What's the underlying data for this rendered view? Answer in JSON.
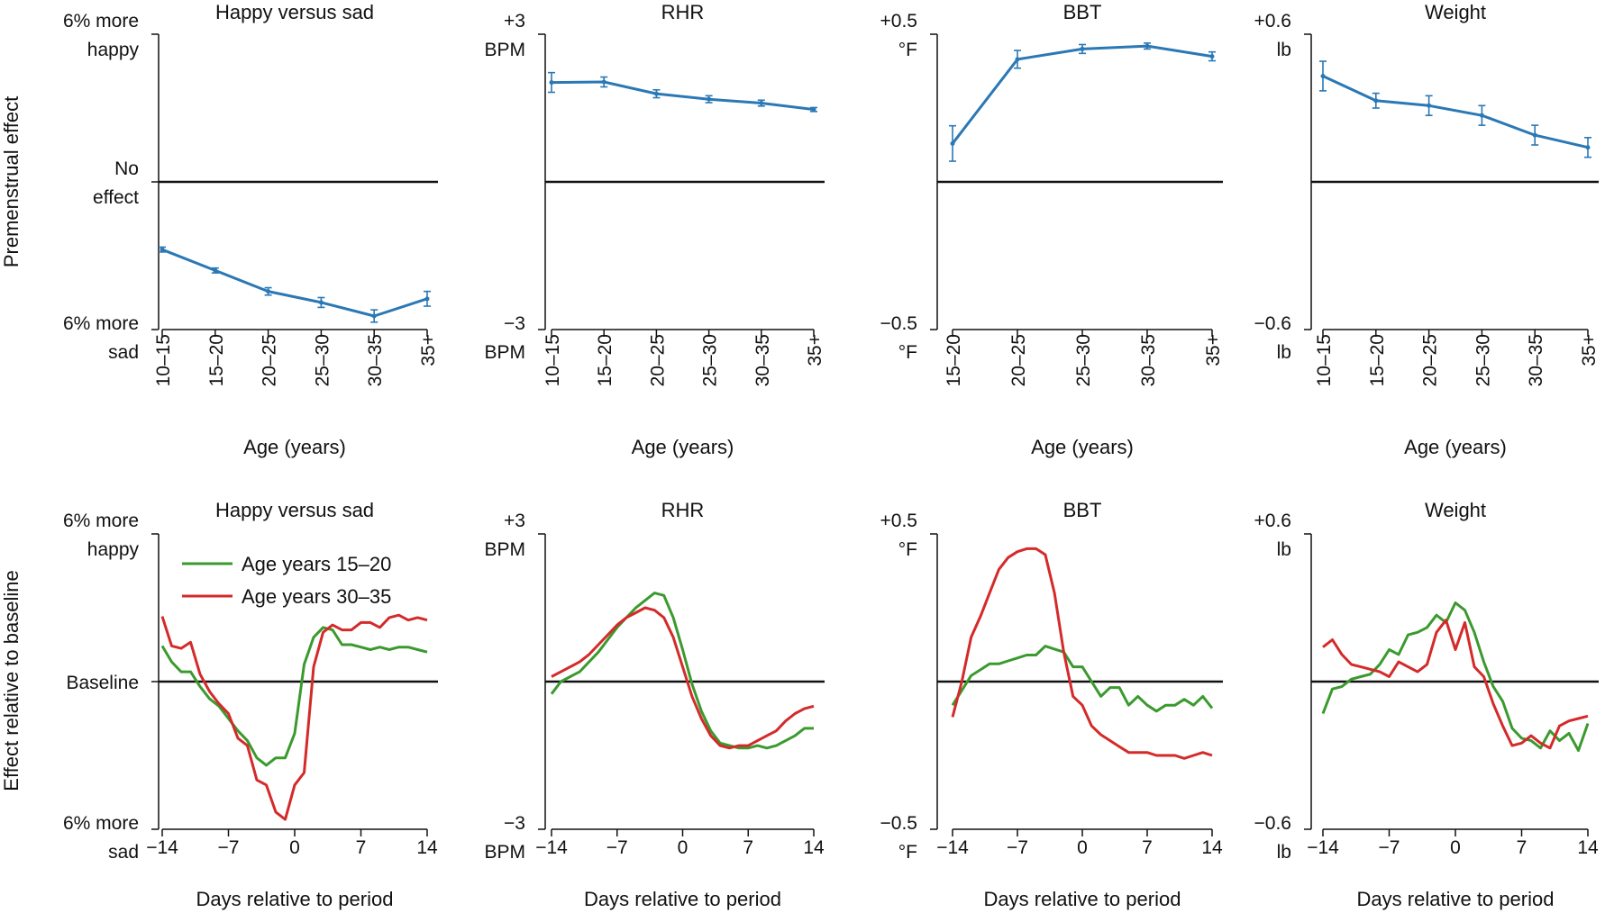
{
  "figure": {
    "row_ylabels": [
      "Premenstrual effect",
      "Effect relative to baseline"
    ],
    "colors": {
      "age_effect": "#2a78b5",
      "age_15_20": "#3a9a2e",
      "age_30_35": "#d42a2a",
      "axis": "#111111"
    }
  },
  "chart_data": [
    {
      "type": "line",
      "row": 0,
      "col": 0,
      "title": "Happy versus sad",
      "xlabel": "Age (years)",
      "categories": [
        "10–15",
        "15–20",
        "20–25",
        "25–30",
        "30–35",
        "35+"
      ],
      "ylim": [
        -6,
        6
      ],
      "ytick_values": [
        6,
        0,
        -6
      ],
      "ytick_labels": [
        [
          "6% more",
          "happy"
        ],
        [
          "No",
          "effect"
        ],
        [
          "6% more",
          "sad"
        ]
      ],
      "series": [
        {
          "values": [
            -2.75,
            -3.6,
            -4.45,
            -4.9,
            -5.45,
            -4.75
          ],
          "err": [
            0.1,
            0.1,
            0.15,
            0.2,
            0.25,
            0.3
          ]
        }
      ]
    },
    {
      "type": "line",
      "row": 0,
      "col": 1,
      "title": "RHR",
      "xlabel": "Age (years)",
      "categories": [
        "10–15",
        "15–20",
        "20–25",
        "25–30",
        "30–35",
        "35+"
      ],
      "ylim": [
        -3,
        3
      ],
      "ytick_values": [
        3,
        -3
      ],
      "ytick_labels": [
        [
          "+3",
          "BPM"
        ],
        [
          "−3",
          "BPM"
        ]
      ],
      "series": [
        {
          "values": [
            2.02,
            2.03,
            1.79,
            1.68,
            1.6,
            1.47
          ],
          "err": [
            0.2,
            0.1,
            0.08,
            0.07,
            0.06,
            0.04
          ]
        }
      ]
    },
    {
      "type": "line",
      "row": 0,
      "col": 2,
      "title": "BBT",
      "xlabel": "Age (years)",
      "categories": [
        "15–20",
        "20–25",
        "25–30",
        "30–35",
        "35+"
      ],
      "ylim": [
        -0.5,
        0.5
      ],
      "ytick_values": [
        0.5,
        -0.5
      ],
      "ytick_labels": [
        [
          "+0.5",
          "°F"
        ],
        [
          "−0.5",
          "°F"
        ]
      ],
      "series": [
        {
          "values": [
            0.13,
            0.415,
            0.45,
            0.46,
            0.425
          ],
          "err": [
            0.06,
            0.03,
            0.015,
            0.01,
            0.015
          ]
        }
      ]
    },
    {
      "type": "line",
      "row": 0,
      "col": 3,
      "title": "Weight",
      "xlabel": "Age (years)",
      "categories": [
        "10–15",
        "15–20",
        "20–25",
        "25–30",
        "30–35",
        "35+"
      ],
      "ylim": [
        -0.6,
        0.6
      ],
      "ytick_values": [
        0.6,
        -0.6
      ],
      "ytick_labels": [
        [
          "+0.6",
          "lb"
        ],
        [
          "−0.6",
          "lb"
        ]
      ],
      "series": [
        {
          "values": [
            0.43,
            0.33,
            0.31,
            0.27,
            0.19,
            0.14
          ],
          "err": [
            0.06,
            0.03,
            0.04,
            0.04,
            0.04,
            0.04
          ]
        }
      ]
    },
    {
      "type": "line",
      "row": 1,
      "col": 0,
      "title": "Happy versus sad",
      "xlabel": "Days relative to period",
      "x": [
        -14,
        -13,
        -12,
        -11,
        -10,
        -9,
        -8,
        -7,
        -6,
        -5,
        -4,
        -3,
        -2,
        -1,
        0,
        1,
        2,
        3,
        4,
        5,
        6,
        7,
        8,
        9,
        10,
        11,
        12,
        13,
        14
      ],
      "xtick_values": [
        -14,
        -7,
        0,
        7,
        14
      ],
      "xtick_labels": [
        "−14",
        "−7",
        "0",
        "7",
        "14"
      ],
      "ylim": [
        -6,
        6
      ],
      "ytick_values": [
        6,
        0,
        -6
      ],
      "ytick_labels": [
        [
          "6% more",
          "happy"
        ],
        [
          "Baseline"
        ],
        [
          "6% more",
          "sad"
        ]
      ],
      "legend": [
        "Age years 15–20",
        "Age years 30–35"
      ],
      "legend_position": "upper-left",
      "series": [
        {
          "name": "Age years 15–20",
          "color": "#3a9a2e",
          "values": [
            1.45,
            0.8,
            0.4,
            0.4,
            -0.2,
            -0.7,
            -1.0,
            -1.5,
            -2.0,
            -2.4,
            -3.1,
            -3.4,
            -3.1,
            -3.1,
            -2.1,
            0.7,
            1.8,
            2.2,
            2.1,
            1.5,
            1.5,
            1.4,
            1.3,
            1.4,
            1.3,
            1.4,
            1.4,
            1.3,
            1.2
          ]
        },
        {
          "name": "Age years 30–35",
          "color": "#d42a2a",
          "values": [
            2.65,
            1.45,
            1.35,
            1.6,
            0.3,
            -0.4,
            -0.9,
            -1.3,
            -2.3,
            -2.6,
            -4.0,
            -4.2,
            -5.3,
            -5.6,
            -4.2,
            -3.7,
            0.6,
            2.0,
            2.3,
            2.1,
            2.1,
            2.4,
            2.4,
            2.2,
            2.6,
            2.7,
            2.5,
            2.6,
            2.5
          ]
        }
      ]
    },
    {
      "type": "line",
      "row": 1,
      "col": 1,
      "title": "RHR",
      "xlabel": "Days relative to period",
      "x": [
        -14,
        -13,
        -12,
        -11,
        -10,
        -9,
        -8,
        -7,
        -6,
        -5,
        -4,
        -3,
        -2,
        -1,
        0,
        1,
        2,
        3,
        4,
        5,
        6,
        7,
        8,
        9,
        10,
        11,
        12,
        13,
        14
      ],
      "xtick_values": [
        -14,
        -7,
        0,
        7,
        14
      ],
      "xtick_labels": [
        "−14",
        "−7",
        "0",
        "7",
        "14"
      ],
      "ylim": [
        -3,
        3
      ],
      "ytick_values": [
        3,
        -3
      ],
      "ytick_labels": [
        [
          "+3",
          "BPM"
        ],
        [
          "−3",
          "BPM"
        ]
      ],
      "series": [
        {
          "name": "Age years 15–20",
          "color": "#3a9a2e",
          "values": [
            -0.25,
            0.0,
            0.1,
            0.2,
            0.4,
            0.6,
            0.85,
            1.1,
            1.3,
            1.5,
            1.65,
            1.8,
            1.75,
            1.3,
            0.65,
            -0.05,
            -0.6,
            -1.0,
            -1.25,
            -1.3,
            -1.35,
            -1.35,
            -1.3,
            -1.35,
            -1.3,
            -1.2,
            -1.1,
            -0.95,
            -0.95
          ]
        },
        {
          "name": "Age years 30–35",
          "color": "#d42a2a",
          "values": [
            0.1,
            0.2,
            0.3,
            0.4,
            0.55,
            0.75,
            0.95,
            1.15,
            1.3,
            1.4,
            1.5,
            1.45,
            1.3,
            0.9,
            0.3,
            -0.3,
            -0.75,
            -1.1,
            -1.3,
            -1.35,
            -1.3,
            -1.3,
            -1.2,
            -1.1,
            -1.0,
            -0.8,
            -0.65,
            -0.55,
            -0.5
          ]
        }
      ]
    },
    {
      "type": "line",
      "row": 1,
      "col": 2,
      "title": "BBT",
      "xlabel": "Days relative to period",
      "x": [
        -14,
        -13,
        -12,
        -11,
        -10,
        -9,
        -8,
        -7,
        -6,
        -5,
        -4,
        -3,
        -2,
        -1,
        0,
        1,
        2,
        3,
        4,
        5,
        6,
        7,
        8,
        9,
        10,
        11,
        12,
        13,
        14
      ],
      "xtick_values": [
        -14,
        -7,
        0,
        7,
        14
      ],
      "xtick_labels": [
        "−14",
        "−7",
        "0",
        "7",
        "14"
      ],
      "ylim": [
        -0.5,
        0.5
      ],
      "ytick_values": [
        0.5,
        -0.5
      ],
      "ytick_labels": [
        [
          "+0.5",
          "°F"
        ],
        [
          "−0.5",
          "°F"
        ]
      ],
      "series": [
        {
          "name": "Age years 15–20",
          "color": "#3a9a2e",
          "values": [
            -0.08,
            -0.03,
            0.02,
            0.04,
            0.06,
            0.06,
            0.07,
            0.08,
            0.09,
            0.09,
            0.12,
            0.11,
            0.1,
            0.05,
            0.05,
            0.0,
            -0.05,
            -0.02,
            -0.02,
            -0.08,
            -0.05,
            -0.08,
            -0.1,
            -0.08,
            -0.08,
            -0.06,
            -0.08,
            -0.05,
            -0.09
          ]
        },
        {
          "name": "Age years 30–35",
          "color": "#d42a2a",
          "values": [
            -0.12,
            0.0,
            0.15,
            0.22,
            0.3,
            0.38,
            0.42,
            0.44,
            0.45,
            0.45,
            0.43,
            0.3,
            0.1,
            -0.05,
            -0.08,
            -0.15,
            -0.18,
            -0.2,
            -0.22,
            -0.24,
            -0.24,
            -0.24,
            -0.25,
            -0.25,
            -0.25,
            -0.26,
            -0.25,
            -0.24,
            -0.25
          ]
        }
      ]
    },
    {
      "type": "line",
      "row": 1,
      "col": 3,
      "title": "Weight",
      "xlabel": "Days relative to period",
      "x": [
        -14,
        -13,
        -12,
        -11,
        -10,
        -9,
        -8,
        -7,
        -6,
        -5,
        -4,
        -3,
        -2,
        -1,
        0,
        1,
        2,
        3,
        4,
        5,
        6,
        7,
        8,
        9,
        10,
        11,
        12,
        13,
        14
      ],
      "xtick_values": [
        -14,
        -7,
        0,
        7,
        14
      ],
      "xtick_labels": [
        "−14",
        "−7",
        "0",
        "7",
        "14"
      ],
      "ylim": [
        -0.6,
        0.6
      ],
      "ytick_values": [
        0.6,
        -0.6
      ],
      "ytick_labels": [
        [
          "+0.6",
          "lb"
        ],
        [
          "−0.6",
          "lb"
        ]
      ],
      "series": [
        {
          "name": "Age years 15–20",
          "color": "#3a9a2e",
          "values": [
            -0.13,
            -0.03,
            -0.02,
            0.01,
            0.02,
            0.03,
            0.07,
            0.13,
            0.11,
            0.19,
            0.2,
            0.22,
            0.27,
            0.24,
            0.32,
            0.29,
            0.2,
            0.08,
            -0.02,
            -0.08,
            -0.19,
            -0.23,
            -0.24,
            -0.27,
            -0.2,
            -0.24,
            -0.21,
            -0.28,
            -0.17
          ]
        },
        {
          "name": "Age years 30–35",
          "color": "#d42a2a",
          "values": [
            0.14,
            0.17,
            0.11,
            0.07,
            0.06,
            0.05,
            0.04,
            0.02,
            0.08,
            0.06,
            0.04,
            0.07,
            0.2,
            0.25,
            0.13,
            0.24,
            0.06,
            0.02,
            -0.09,
            -0.18,
            -0.26,
            -0.25,
            -0.22,
            -0.25,
            -0.27,
            -0.18,
            -0.16,
            -0.15,
            -0.14
          ]
        }
      ]
    }
  ]
}
